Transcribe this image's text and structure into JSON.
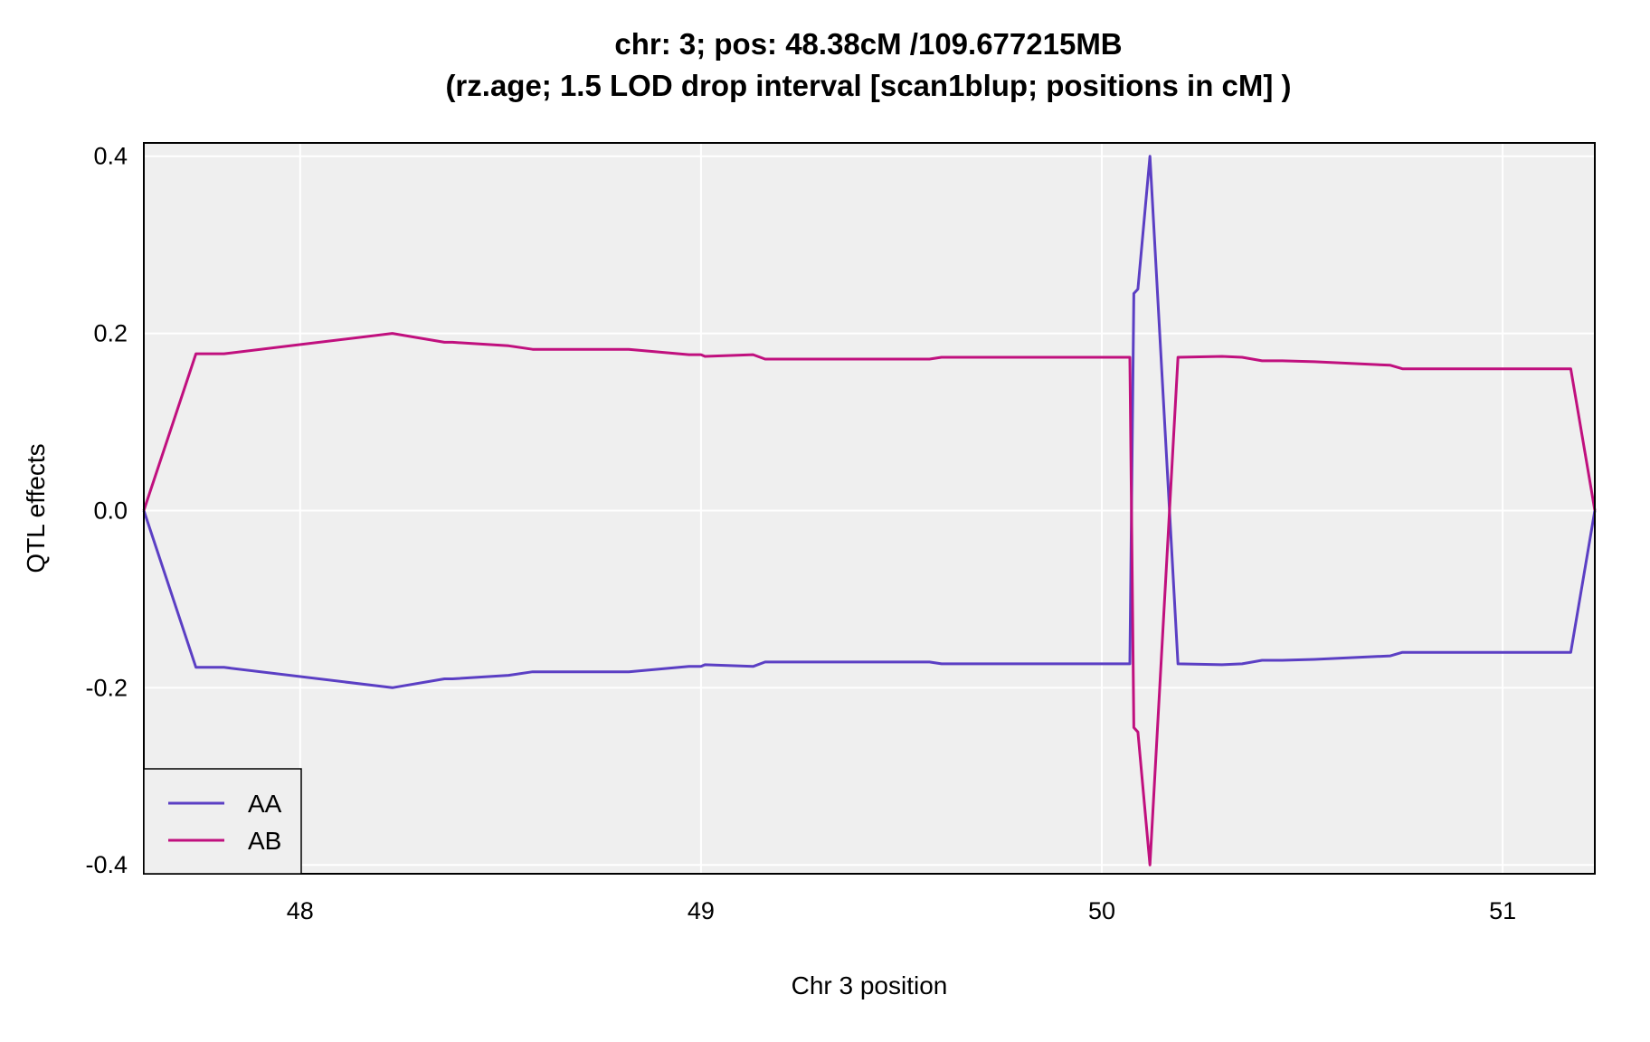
{
  "chart_data": {
    "type": "line",
    "title": "chr: 3; pos: 48.38cM /109.677215MB",
    "subtitle": "(rz.age; 1.5 LOD drop interval [scan1blup; positions in cM] )",
    "xlabel": "Chr 3 position",
    "ylabel": "QTL effects",
    "xlim": [
      47.61,
      51.23
    ],
    "ylim": [
      -0.41,
      0.415
    ],
    "x_ticks": [
      48,
      49,
      50,
      51
    ],
    "x_tick_labels": [
      "48",
      "49",
      "50",
      "51"
    ],
    "y_ticks": [
      -0.4,
      -0.2,
      0.0,
      0.2,
      0.4
    ],
    "y_tick_labels": [
      "-0.4",
      "-0.2",
      "0.0",
      "0.2",
      "0.4"
    ],
    "grid": true,
    "legend_position": "bottom-left",
    "series": [
      {
        "name": "AA",
        "color": "#5b3fc4",
        "x": [
          47.61,
          47.74,
          47.81,
          48.23,
          48.36,
          48.38,
          48.52,
          48.58,
          48.82,
          48.97,
          49.0,
          49.01,
          49.13,
          49.16,
          49.57,
          49.6,
          50.07,
          50.08,
          50.09,
          50.12,
          50.19,
          50.3,
          50.35,
          50.4,
          50.45,
          50.53,
          50.72,
          50.75,
          51.17,
          51.23
        ],
        "y": [
          0.0,
          -0.177,
          -0.177,
          -0.2,
          -0.19,
          -0.19,
          -0.186,
          -0.182,
          -0.182,
          -0.176,
          -0.176,
          -0.174,
          -0.176,
          -0.171,
          -0.171,
          -0.173,
          -0.173,
          0.245,
          0.25,
          0.4,
          -0.173,
          -0.174,
          -0.173,
          -0.169,
          -0.169,
          -0.168,
          -0.164,
          -0.16,
          -0.16,
          0.0
        ]
      },
      {
        "name": "AB",
        "color": "#c0107e",
        "x": [
          47.61,
          47.74,
          47.81,
          48.23,
          48.36,
          48.38,
          48.52,
          48.58,
          48.82,
          48.97,
          49.0,
          49.01,
          49.13,
          49.16,
          49.57,
          49.6,
          50.07,
          50.08,
          50.09,
          50.12,
          50.19,
          50.3,
          50.35,
          50.4,
          50.45,
          50.53,
          50.72,
          50.75,
          51.17,
          51.23
        ],
        "y": [
          0.0,
          0.177,
          0.177,
          0.2,
          0.19,
          0.19,
          0.186,
          0.182,
          0.182,
          0.176,
          0.176,
          0.174,
          0.176,
          0.171,
          0.171,
          0.173,
          0.173,
          -0.245,
          -0.25,
          -0.4,
          0.173,
          0.174,
          0.173,
          0.169,
          0.169,
          0.168,
          0.164,
          0.16,
          0.16,
          0.0
        ]
      }
    ]
  }
}
